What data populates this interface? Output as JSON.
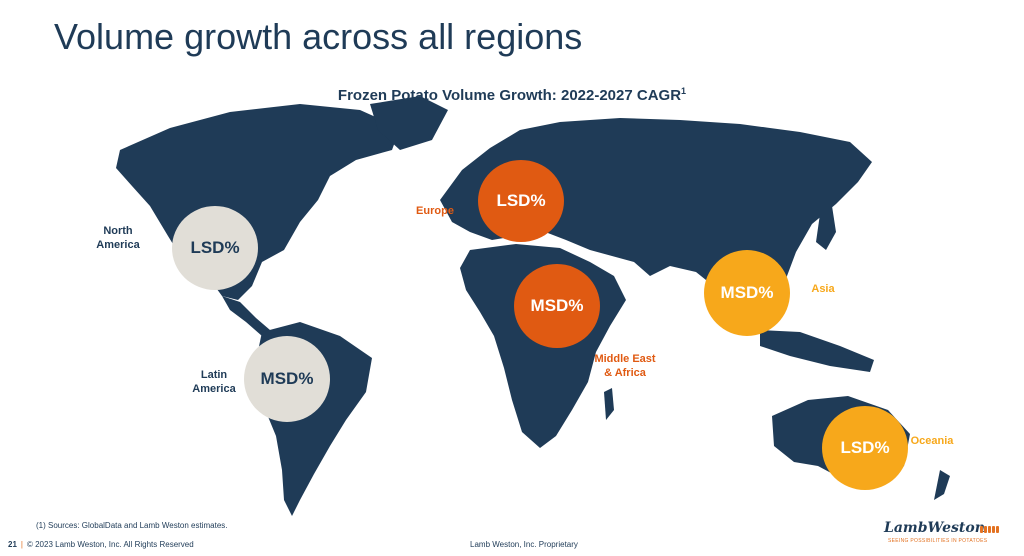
{
  "slide": {
    "title": "Volume growth across all regions",
    "subtitle": "Frozen Potato Volume Growth:  2022-2027 CAGR",
    "subtitle_sup": "1",
    "footnote": "(1) Sources: GlobalData and Lamb Weston estimates.",
    "page_number": "21",
    "separator": "|",
    "copyright": "© 2023 Lamb Weston, Inc.  All Rights Reserved",
    "proprietary": "Lamb Weston, Inc. Proprietary"
  },
  "logo": {
    "wordmark": "LambWeston",
    "tagline": "SEEING POSSIBILITIES IN POTATOES"
  },
  "colors": {
    "navy": "#1f3b57",
    "orange_dark": "#e05a12",
    "gold": "#f7a81b",
    "gray": "#e1ded7"
  },
  "regions": [
    {
      "name": "North\nAmerica",
      "value": "LSD%",
      "style": "gray"
    },
    {
      "name": "Latin\nAmerica",
      "value": "MSD%",
      "style": "gray"
    },
    {
      "name": "Europe",
      "value": "LSD%",
      "style": "orange_dark"
    },
    {
      "name": "Middle East\n& Africa",
      "value": "MSD%",
      "style": "orange_dark"
    },
    {
      "name": "Asia",
      "value": "MSD%",
      "style": "gold"
    },
    {
      "name": "Oceania",
      "value": "LSD%",
      "style": "gold"
    }
  ]
}
